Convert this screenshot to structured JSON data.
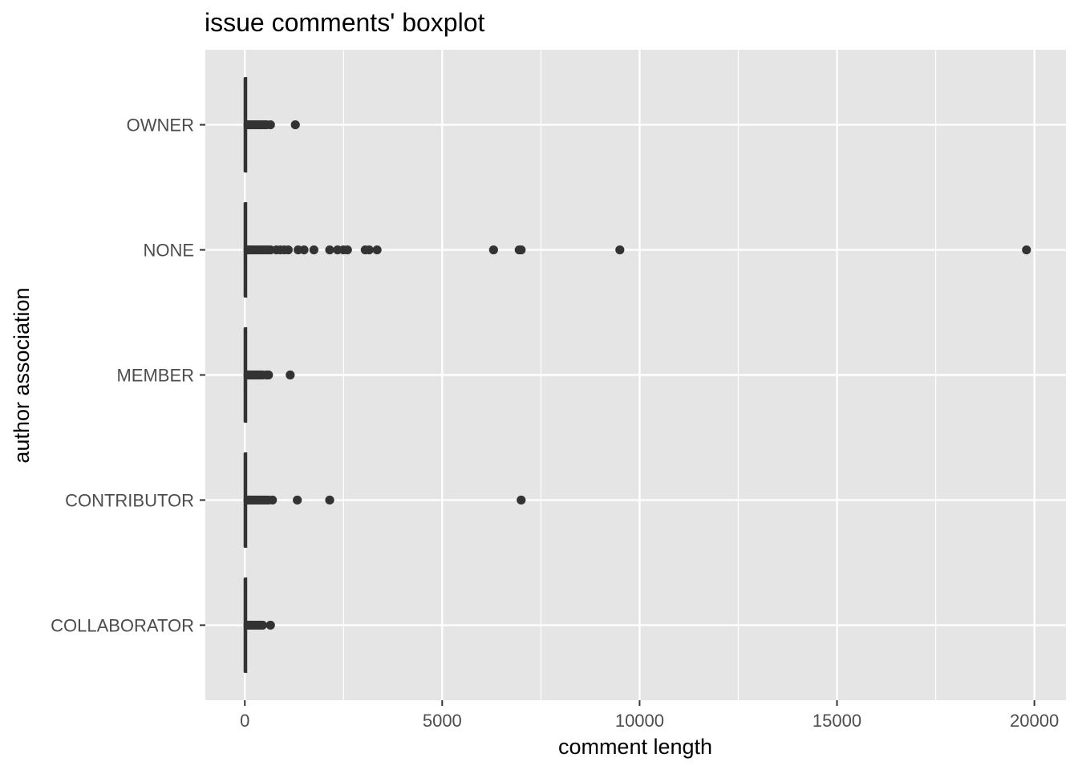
{
  "chart_data": {
    "type": "boxplot",
    "title": "issue comments' boxplot",
    "xlabel": "comment length",
    "ylabel": "author association",
    "xlim": [
      -1000,
      20800
    ],
    "x_ticks": [
      0,
      5000,
      10000,
      15000,
      20000
    ],
    "x_tick_labels": [
      "0",
      "5000",
      "10000",
      "15000",
      "20000"
    ],
    "grid": true,
    "orientation": "horizontal",
    "categories": [
      "COLLABORATOR",
      "CONTRIBUTOR",
      "MEMBER",
      "NONE",
      "OWNER"
    ],
    "series": [
      {
        "category": "COLLABORATOR",
        "whisker_low": 0,
        "q1": 0,
        "median": 10,
        "q3": 30,
        "whisker_high": 60,
        "outliers": [
          80,
          100,
          130,
          160,
          200,
          250,
          300,
          350,
          400,
          450,
          650
        ]
      },
      {
        "category": "CONTRIBUTOR",
        "whisker_low": 0,
        "q1": 0,
        "median": 10,
        "q3": 30,
        "whisker_high": 60,
        "outliers": [
          80,
          100,
          130,
          160,
          200,
          250,
          300,
          350,
          400,
          450,
          500,
          550,
          600,
          700,
          1330,
          2150,
          7000
        ]
      },
      {
        "category": "MEMBER",
        "whisker_low": 0,
        "q1": 0,
        "median": 10,
        "q3": 30,
        "whisker_high": 60,
        "outliers": [
          80,
          100,
          130,
          160,
          200,
          250,
          300,
          350,
          400,
          450,
          550,
          600,
          1150
        ]
      },
      {
        "category": "NONE",
        "whisker_low": 0,
        "q1": 0,
        "median": 10,
        "q3": 30,
        "whisker_high": 60,
        "outliers": [
          80,
          100,
          130,
          160,
          200,
          250,
          300,
          350,
          400,
          450,
          500,
          550,
          600,
          650,
          800,
          900,
          1000,
          1100,
          1350,
          1500,
          1750,
          2150,
          2350,
          2500,
          2600,
          3050,
          3150,
          3350,
          6300,
          6950,
          7000,
          9500,
          19800
        ]
      },
      {
        "category": "OWNER",
        "whisker_low": 0,
        "q1": 0,
        "median": 10,
        "q3": 30,
        "whisker_high": 60,
        "outliers": [
          80,
          100,
          130,
          160,
          200,
          250,
          300,
          350,
          400,
          450,
          500,
          550,
          650,
          1280
        ]
      }
    ],
    "colors": {
      "panel_background": "#e5e5e5",
      "grid": "#ffffff",
      "marks": "#333333"
    }
  }
}
